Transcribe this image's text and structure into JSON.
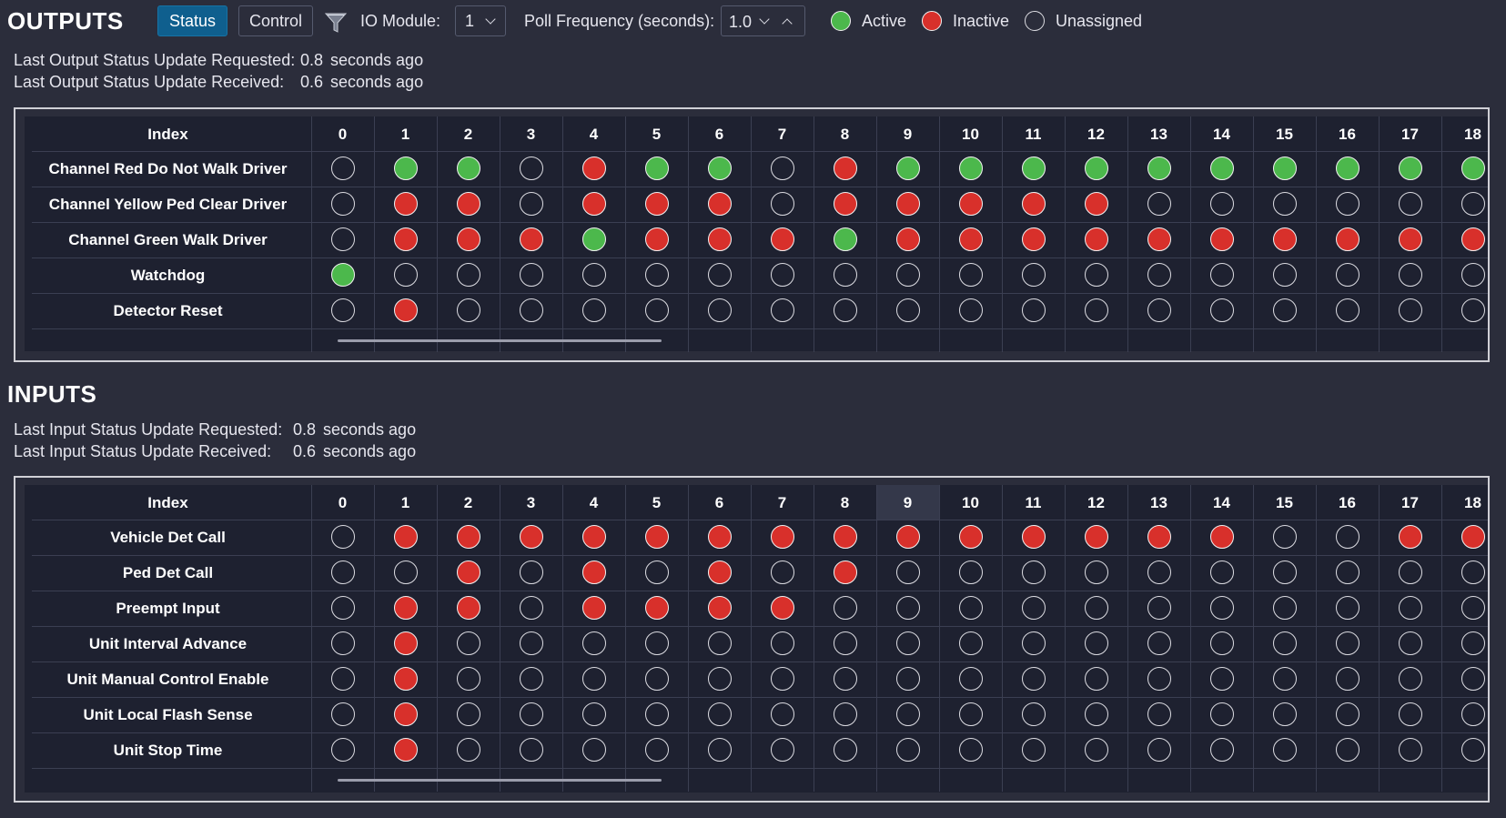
{
  "toolbar": {
    "title": "OUTPUTS",
    "status_label": "Status",
    "control_label": "Control",
    "filter_icon": "filter-icon",
    "io_module_label": "IO Module:",
    "io_module_value": "1",
    "poll_label": "Poll Frequency (seconds):",
    "poll_value": "1.0",
    "legend": {
      "active": "Active",
      "inactive": "Inactive",
      "unassigned": "Unassigned"
    }
  },
  "colors": {
    "active": "#4cb84c",
    "inactive": "#d8302b",
    "accent": "#0f5f8e",
    "background": "#2b2d3b",
    "grid_background": "#1e2130"
  },
  "outputs": {
    "requested_label": "Last Output Status Update Requested:",
    "requested_value": "0.8",
    "requested_unit": "seconds ago",
    "received_label": "Last Output Status Update Received:",
    "received_value": "0.6",
    "received_unit": "seconds ago",
    "index_header": "Index",
    "indices": [
      "0",
      "1",
      "2",
      "3",
      "4",
      "5",
      "6",
      "7",
      "8",
      "9",
      "10",
      "11",
      "12",
      "13",
      "14",
      "15",
      "16",
      "17",
      "18"
    ],
    "rows": [
      {
        "label": "Channel Red Do Not Walk Driver",
        "states": "UAAUIAAUIAAAAAAAAAA"
      },
      {
        "label": "Channel Yellow Ped Clear Driver",
        "states": "UIIUIIIUIIIIIUUUUUU"
      },
      {
        "label": "Channel Green Walk Driver",
        "states": "UIIIAIIIAIIIIIIIIII"
      },
      {
        "label": "Watchdog",
        "states": "AUUUUUUUUUUUUUUUUUU"
      },
      {
        "label": "Detector Reset",
        "states": "UIUUUUUUUUUUUUUUUUU"
      }
    ]
  },
  "inputs": {
    "title": "INPUTS",
    "requested_label": "Last Input Status Update Requested:",
    "requested_value": "0.8",
    "requested_unit": "seconds ago",
    "received_label": "Last Input Status Update Received:",
    "received_value": "0.6",
    "received_unit": "seconds ago",
    "index_header": "Index",
    "indices": [
      "0",
      "1",
      "2",
      "3",
      "4",
      "5",
      "6",
      "7",
      "8",
      "9",
      "10",
      "11",
      "12",
      "13",
      "14",
      "15",
      "16",
      "17",
      "18"
    ],
    "rows": [
      {
        "label": "Vehicle Det Call",
        "states": "UIIIIIIIIIIIIIIUUII"
      },
      {
        "label": "Ped Det Call",
        "states": "UUIUIUIUIUUUUUUUUUU"
      },
      {
        "label": "Preempt Input",
        "states": "UIIUIIIIUUUUUUUUUUU"
      },
      {
        "label": "Unit Interval Advance",
        "states": "UIUUUUUUUUUUUUUUUUU"
      },
      {
        "label": "Unit Manual Control Enable",
        "states": "UIUUUUUUUUUUUUUUUUU"
      },
      {
        "label": "Unit Local Flash Sense",
        "states": "UIUUUUUUUUUUUUUUUUU"
      },
      {
        "label": "Unit Stop Time",
        "states": "UIUUUUUUUUUUUUUUUUU"
      }
    ]
  }
}
